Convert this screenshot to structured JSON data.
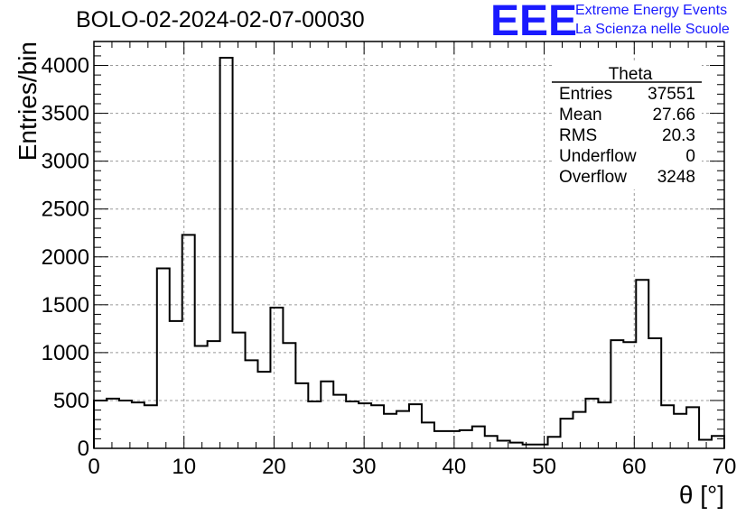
{
  "header": {
    "title": "BOLO-02-2024-02-07-00030",
    "logo_mark": "EEE",
    "logo_line1": "Extreme Energy Events",
    "logo_line2": "La Scienza nelle Scuole",
    "logo_color": "#1a1aff"
  },
  "stats_box": {
    "title": "Theta",
    "rows": [
      {
        "label": "Entries",
        "value": "37551"
      },
      {
        "label": "Mean",
        "value": "27.66"
      },
      {
        "label": "RMS",
        "value": "20.3"
      },
      {
        "label": "Underflow",
        "value": "0"
      },
      {
        "label": "Overflow",
        "value": "3248"
      }
    ]
  },
  "chart_data": {
    "type": "bar",
    "title": "BOLO-02-2024-02-07-00030",
    "xlabel": "θ [°]",
    "ylabel": "Entries/bin",
    "xlim": [
      0,
      70
    ],
    "ylim": [
      0,
      4250
    ],
    "bin_width": 1.4,
    "grid": true,
    "xticks": [
      0,
      10,
      20,
      30,
      40,
      50,
      60,
      70
    ],
    "yticks": [
      0,
      500,
      1000,
      1500,
      2000,
      2500,
      3000,
      3500,
      4000
    ],
    "values": [
      500,
      520,
      500,
      480,
      450,
      1880,
      1330,
      2230,
      1070,
      1120,
      4080,
      1210,
      920,
      800,
      1470,
      1100,
      680,
      490,
      700,
      560,
      490,
      470,
      450,
      360,
      390,
      460,
      270,
      180,
      180,
      190,
      230,
      130,
      80,
      60,
      40,
      40,
      120,
      310,
      380,
      520,
      480,
      1130,
      1110,
      1760,
      1150,
      450,
      360,
      430,
      90,
      130
    ]
  }
}
